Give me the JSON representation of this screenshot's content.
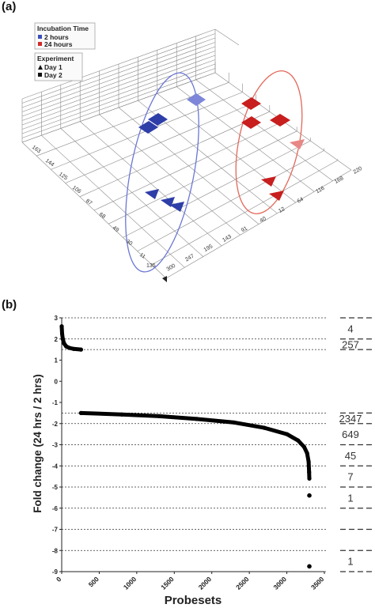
{
  "panel_a": {
    "label": "(a)",
    "legend": {
      "incubation": {
        "title": "Incubation Time",
        "items": [
          {
            "label": "2 hours",
            "color": "#3a4fb8"
          },
          {
            "label": "24 hours",
            "color": "#d42a2a"
          }
        ]
      },
      "experiment": {
        "title": "Experiment",
        "items": [
          {
            "label": "Day 1",
            "icon": "triangle-icon"
          },
          {
            "label": "Day 2",
            "icon": "square-icon"
          }
        ]
      }
    },
    "axis_ticks_left": [
      "163",
      "144",
      "125",
      "106",
      "87",
      "68",
      "49",
      "30",
      "11"
    ],
    "axis_ticks_bottom": [
      "300",
      "247",
      "195",
      "143",
      "91",
      "40",
      "12",
      "64",
      "116",
      "168",
      "220"
    ],
    "axis_tick_corner": "135"
  },
  "chart_data": {
    "type": "scatter",
    "panel_label": "(b)",
    "xlabel": "Probesets",
    "ylabel": "Fold change (24 hrs / 2 hrs)",
    "xlim": [
      0,
      3500
    ],
    "ylim": [
      -9,
      3
    ],
    "x_ticks": [
      "0",
      "500",
      "1000",
      "1500",
      "2000",
      "2500",
      "3000",
      "3500"
    ],
    "y_ticks": [
      "3",
      "2",
      "1",
      "0",
      "-1",
      "-2",
      "-3",
      "-4",
      "-5",
      "-6",
      "-7",
      "-8",
      "-9"
    ],
    "dashed_lines_y": [
      3,
      2,
      1.5,
      -1.5,
      -2,
      -3,
      -4,
      -5,
      -6,
      -7,
      -8,
      -9
    ],
    "count_labels": [
      {
        "text": "4",
        "range": [
          2,
          3
        ]
      },
      {
        "text": "257",
        "range": [
          1.5,
          2
        ]
      },
      {
        "text": "2347",
        "range": [
          -2,
          -1.5
        ]
      },
      {
        "text": "649",
        "range": [
          -3,
          -2
        ]
      },
      {
        "text": "45",
        "range": [
          -4,
          -3
        ]
      },
      {
        "text": "7",
        "range": [
          -5,
          -4
        ]
      },
      {
        "text": "1",
        "range": [
          -6,
          -5
        ]
      },
      {
        "text": "1",
        "range": [
          -9,
          -8
        ]
      }
    ],
    "curve_up": [
      [
        0,
        2.6
      ],
      [
        5,
        2.25
      ],
      [
        15,
        2.0
      ],
      [
        30,
        1.8
      ],
      [
        60,
        1.65
      ],
      [
        100,
        1.58
      ],
      [
        160,
        1.53
      ],
      [
        257,
        1.5
      ]
    ],
    "curve_down": [
      [
        257,
        -1.5
      ],
      [
        800,
        -1.57
      ],
      [
        1300,
        -1.65
      ],
      [
        1800,
        -1.78
      ],
      [
        2300,
        -1.95
      ],
      [
        2700,
        -2.2
      ],
      [
        3000,
        -2.5
      ],
      [
        3150,
        -2.8
      ],
      [
        3230,
        -3.1
      ],
      [
        3270,
        -3.4
      ],
      [
        3290,
        -3.8
      ],
      [
        3297,
        -4.3
      ],
      [
        3300,
        -4.6
      ]
    ],
    "outlier_points": [
      [
        3300,
        -5.4
      ],
      [
        3300,
        -8.75
      ]
    ]
  }
}
